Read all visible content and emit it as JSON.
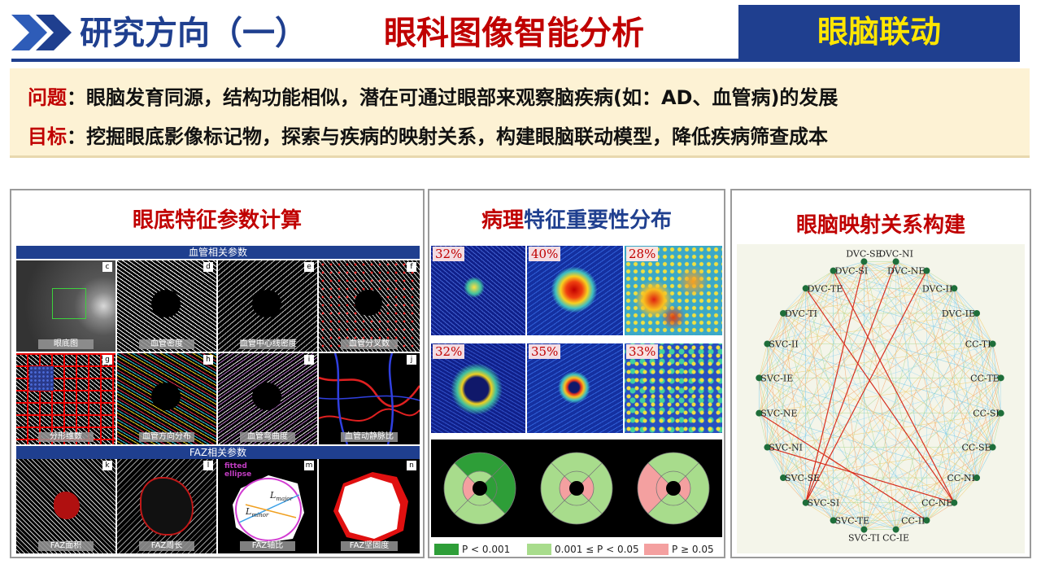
{
  "header": {
    "title_left": "研究方向（一）",
    "title_right": "眼科图像智能分析",
    "tag": "眼脑联动"
  },
  "problem": {
    "q_label": "问题",
    "q_text": "：眼脑发育同源，结构功能相似，潜在可通过眼部来观察脑疾病(如：AD、血管病)的发展",
    "g_label": "目标",
    "g_text": "：挖掘眼底影像标记物，探索与疾病的映射关系，构建眼脑联动模型，降低疾病筛查成本"
  },
  "panel1": {
    "title": "眼底特征参数计算",
    "vessel_header": "血管相关参数",
    "faz_header": "FAZ相关参数",
    "tiles": [
      {
        "letter": "c",
        "caption": "眼底图"
      },
      {
        "letter": "d",
        "caption": "血管密度"
      },
      {
        "letter": "e",
        "caption": "血管中心线密度"
      },
      {
        "letter": "f",
        "caption": "血管分叉数"
      },
      {
        "letter": "g",
        "caption": "分形维数"
      },
      {
        "letter": "h",
        "caption": "血管方向分布"
      },
      {
        "letter": "i",
        "caption": "血管弯曲度"
      },
      {
        "letter": "j",
        "caption": "血管动静脉比"
      }
    ],
    "faz_tiles": [
      {
        "letter": "k",
        "caption": "FAZ面积"
      },
      {
        "letter": "l",
        "caption": "FAZ周长"
      },
      {
        "letter": "m",
        "caption": "FAZ轴比"
      },
      {
        "letter": "n",
        "caption": "FAZ坚固度"
      }
    ],
    "fitted_line1": "fitted",
    "fitted_line2": "ellipse",
    "l_major": "L",
    "l_major_sub": "major",
    "l_minor": "L",
    "l_minor_sub": "minor"
  },
  "panel2": {
    "title_red": "病理",
    "title_navy": "特征重要性分布",
    "heatmaps": [
      "32%",
      "40%",
      "28%",
      "32%",
      "35%",
      "33%"
    ],
    "legend": [
      {
        "label": "P  < 0.001",
        "color": "#2e9e38"
      },
      {
        "label": "0.001 ≤ P  < 0.05",
        "color": "#a8dc8c"
      },
      {
        "label": "P  ≥ 0.05",
        "color": "#f4a0a0"
      }
    ]
  },
  "panel3": {
    "title": "眼脑映射关系构建",
    "nodes": [
      "DVC-NI",
      "DVC-NE",
      "DVC-II",
      "DVC-IE",
      "CC-TI",
      "CC-TE",
      "CC-SI",
      "CC-SE",
      "CC-NI",
      "CC-NE",
      "CC-II",
      "CC-IE",
      "SVC-TI",
      "SVC-TE",
      "SVC-SI",
      "SVC-SE",
      "SVC-NI",
      "SVC-NE",
      "SVC-IE",
      "SVC-II",
      "DVC-TI",
      "DVC-TE",
      "DVC-SI",
      "DVC-SE"
    ]
  }
}
